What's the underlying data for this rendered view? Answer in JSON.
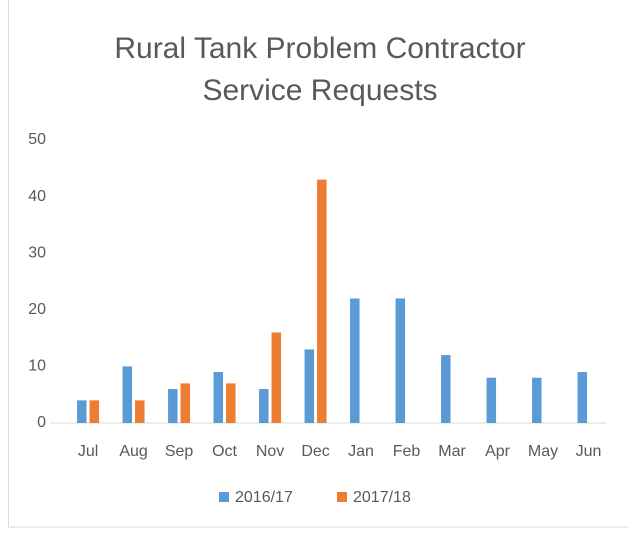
{
  "chart_data": {
    "type": "bar",
    "title": "Rural Tank Problem Contractor Service Requests",
    "categories": [
      "Jul",
      "Aug",
      "Sep",
      "Oct",
      "Nov",
      "Dec",
      "Jan",
      "Feb",
      "Mar",
      "Apr",
      "May",
      "Jun"
    ],
    "series": [
      {
        "name": "2016/17",
        "color": "#5b9bd5",
        "values": [
          4,
          10,
          6,
          9,
          6,
          13,
          22,
          22,
          12,
          8,
          8,
          9
        ]
      },
      {
        "name": "2017/18",
        "color": "#ed7d31",
        "values": [
          4,
          4,
          7,
          7,
          16,
          43,
          null,
          null,
          null,
          null,
          null,
          null
        ]
      }
    ],
    "ylim": [
      0,
      50
    ],
    "yticks": [
      0,
      10,
      20,
      30,
      40,
      50
    ],
    "grid": false,
    "legend": "bottom"
  }
}
